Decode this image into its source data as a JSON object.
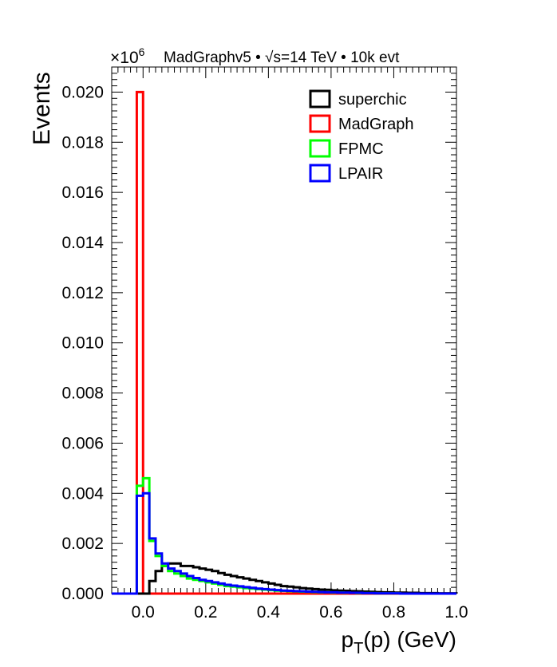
{
  "chart_data": {
    "type": "histogram",
    "title": "MadGraphv5 • √s=14 TeV • 10k evt",
    "multiplier_base": "×10",
    "multiplier_exp": "6",
    "xlabel_main": "p",
    "xlabel_sub": "T",
    "xlabel_rest": "(p) (GeV)",
    "ylabel": "Events",
    "xlim": [
      -0.1,
      1.0
    ],
    "ylim": [
      0,
      0.021
    ],
    "bin_width": 0.02,
    "x_tick_labels": [
      "0.0",
      "0.2",
      "0.4",
      "0.6",
      "0.8",
      "1.0"
    ],
    "x_ticks": [
      0,
      0.2,
      0.4,
      0.6,
      0.8,
      1.0
    ],
    "y_tick_labels": [
      "0.000",
      "0.002",
      "0.004",
      "0.006",
      "0.008",
      "0.010",
      "0.012",
      "0.014",
      "0.016",
      "0.018",
      "0.020"
    ],
    "y_ticks": [
      0,
      0.002,
      0.004,
      0.006,
      0.008,
      0.01,
      0.012,
      0.014,
      0.016,
      0.018,
      0.02
    ],
    "legend_position": "top-right",
    "series": [
      {
        "name": "superchic",
        "color": "#000000",
        "values": [
          0,
          0,
          0,
          0,
          0,
          0,
          0.0005,
          0.0009,
          0.0011,
          0.0012,
          0.0012,
          0.0011,
          0.0011,
          0.00105,
          0.001,
          0.00095,
          0.0009,
          0.00082,
          0.00075,
          0.0007,
          0.00065,
          0.0006,
          0.00055,
          0.0005,
          0.00045,
          0.0004,
          0.00035,
          0.0003,
          0.00028,
          0.00025,
          0.00022,
          0.0002,
          0.00018,
          0.00016,
          0.00015,
          0.00013,
          0.00012,
          0.00011,
          0.0001,
          9e-05,
          8e-05,
          7e-05,
          6e-05,
          5e-05,
          5e-05,
          4e-05,
          4e-05,
          3e-05,
          3e-05,
          2e-05,
          2e-05,
          2e-05,
          1e-05,
          1e-05,
          1e-05
        ]
      },
      {
        "name": "MadGraph",
        "color": "#ff0000",
        "values": [
          0,
          0,
          0,
          0,
          0.02,
          0,
          0,
          0,
          0,
          0,
          0,
          0,
          0,
          0,
          0,
          0,
          0,
          0,
          0,
          0,
          0,
          0,
          0,
          0,
          0,
          0,
          0,
          0,
          0,
          0,
          0,
          0,
          0,
          0,
          0,
          0,
          0,
          0,
          0,
          0,
          0,
          0,
          0,
          0,
          0,
          0,
          0,
          0,
          0,
          0,
          0,
          0,
          0,
          0,
          0
        ]
      },
      {
        "name": "FPMC",
        "color": "#00ff00",
        "values": [
          0,
          0,
          0,
          0,
          0.0043,
          0.0046,
          0.0021,
          0.0015,
          0.0011,
          0.0009,
          0.0008,
          0.0007,
          0.0006,
          0.00055,
          0.0005,
          0.00045,
          0.0004,
          0.00035,
          0.0003,
          0.00028,
          0.00025,
          0.00022,
          0.0002,
          0.00018,
          0.00016,
          0.00014,
          0.00012,
          0.00011,
          0.0001,
          9e-05,
          8e-05,
          7e-05,
          6e-05,
          5e-05,
          5e-05,
          4e-05,
          4e-05,
          3e-05,
          3e-05,
          2e-05,
          2e-05,
          2e-05,
          1e-05,
          1e-05,
          1e-05,
          1e-05,
          0,
          0,
          0,
          0,
          0,
          0,
          0,
          0,
          0
        ]
      },
      {
        "name": "LPAIR",
        "color": "#0000ff",
        "values": [
          0,
          0,
          0,
          0,
          0.0039,
          0.004,
          0.0022,
          0.0016,
          0.0012,
          0.001,
          0.0009,
          0.0008,
          0.0007,
          0.00062,
          0.00055,
          0.0005,
          0.00045,
          0.0004,
          0.00035,
          0.00032,
          0.00029,
          0.00026,
          0.00023,
          0.0002,
          0.00018,
          0.00016,
          0.00014,
          0.00012,
          0.00011,
          0.0001,
          9e-05,
          8e-05,
          7e-05,
          6e-05,
          5e-05,
          5e-05,
          4e-05,
          4e-05,
          3e-05,
          3e-05,
          2e-05,
          2e-05,
          1e-05,
          1e-05,
          1e-05,
          1e-05,
          0,
          0,
          0,
          0,
          0,
          0,
          0,
          0,
          0
        ]
      }
    ]
  }
}
